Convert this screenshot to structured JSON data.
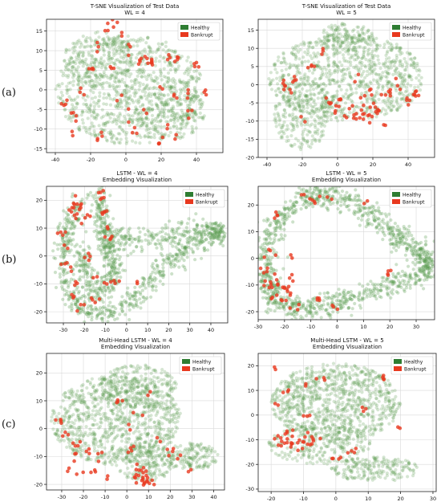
{
  "row_labels": [
    "(a)",
    "(b)",
    "(c)"
  ],
  "colors": {
    "healthy": "#2e7d32",
    "healthy_point": "#5a9a4e",
    "bankrupt": "#e8391f",
    "grid": "#d9d9d9"
  },
  "chart_data": [
    {
      "type": "scatter",
      "title": "T-SNE Visualization of Test Data\nWL = 4",
      "xlim": [
        -45,
        55
      ],
      "ylim": [
        -16,
        18
      ],
      "xticks": [
        -40,
        -20,
        0,
        20,
        40
      ],
      "yticks": [
        -15,
        -10,
        -5,
        0,
        5,
        10,
        15
      ],
      "grid": true,
      "legend_position": "upper-right",
      "legend": [
        "Healthy",
        "Bankrupt"
      ],
      "series": [
        {
          "name": "Healthy",
          "color": "#2e7d32",
          "opacity": 0.25,
          "regions": [
            {
              "cx": 2,
              "cy": 0,
              "rx": 42,
              "ry": 14,
              "n": 900
            },
            {
              "cx": -15,
              "cy": 8,
              "rx": 20,
              "ry": 7,
              "n": 200
            },
            {
              "cx": 25,
              "cy": -5,
              "rx": 20,
              "ry": 8,
              "n": 200
            }
          ]
        },
        {
          "name": "Bankrupt",
          "color": "#e8391f",
          "opacity": 0.8,
          "clusters": [
            [
              -10,
              16
            ],
            [
              -6,
              17
            ],
            [
              -3,
              14
            ],
            [
              -16,
              12
            ],
            [
              -35,
              -3
            ],
            [
              -30,
              -5
            ],
            [
              -25,
              -1
            ],
            [
              -28,
              -8
            ],
            [
              -20,
              5
            ],
            [
              8,
              7
            ],
            [
              10,
              7
            ],
            [
              14,
              6
            ],
            [
              15,
              7
            ],
            [
              25,
              8
            ],
            [
              30,
              8
            ],
            [
              40,
              7
            ],
            [
              20,
              0
            ],
            [
              10,
              -4
            ],
            [
              0,
              -6
            ],
            [
              -5,
              -2
            ],
            [
              28,
              -2
            ],
            [
              34,
              0
            ],
            [
              45,
              -1
            ],
            [
              5,
              -10
            ],
            [
              -30,
              -11
            ],
            [
              -15,
              -12
            ],
            [
              18,
              -13
            ],
            [
              23,
              -9
            ],
            [
              36,
              -5
            ],
            [
              -8,
              6
            ],
            [
              2,
              11
            ],
            [
              28,
              -12
            ]
          ]
        }
      ]
    },
    {
      "type": "scatter",
      "title": "T-SNE Visualization of Test Data\nWL = 5",
      "xlim": [
        -45,
        55
      ],
      "ylim": [
        -20,
        18
      ],
      "xticks": [
        -40,
        -20,
        0,
        20,
        40
      ],
      "yticks": [
        -20,
        -15,
        -10,
        -5,
        0,
        5,
        10,
        15
      ],
      "grid": true,
      "legend_position": "upper-right",
      "legend": [
        "Healthy",
        "Bankrupt"
      ],
      "series": [
        {
          "name": "Healthy",
          "color": "#2e7d32",
          "opacity": 0.25,
          "regions": [
            {
              "cx": 5,
              "cy": 2,
              "rx": 44,
              "ry": 12,
              "n": 900
            },
            {
              "cx": -20,
              "cy": -8,
              "rx": 16,
              "ry": 10,
              "n": 250
            },
            {
              "cx": 5,
              "cy": 13,
              "rx": 15,
              "ry": 4,
              "n": 120
            }
          ]
        },
        {
          "name": "Bankrupt",
          "color": "#e8391f",
          "opacity": 0.8,
          "clusters": [
            [
              -32,
              0
            ],
            [
              -28,
              -2
            ],
            [
              -24,
              2
            ],
            [
              -5,
              -5
            ],
            [
              0,
              -7
            ],
            [
              2,
              -4
            ],
            [
              5,
              -8
            ],
            [
              8,
              -6
            ],
            [
              10,
              -9
            ],
            [
              12,
              -7
            ],
            [
              14,
              -8
            ],
            [
              15,
              -5
            ],
            [
              18,
              -9
            ],
            [
              20,
              -6
            ],
            [
              22,
              -7
            ],
            [
              25,
              -4
            ],
            [
              30,
              -2
            ],
            [
              34,
              0
            ],
            [
              40,
              -5
            ],
            [
              44,
              -2
            ],
            [
              46,
              -3
            ],
            [
              -15,
              5
            ],
            [
              -8,
              9
            ],
            [
              -20,
              -10
            ],
            [
              10,
              1
            ],
            [
              28,
              -11
            ],
            [
              18,
              -3
            ]
          ]
        }
      ]
    },
    {
      "type": "scatter",
      "title": "LSTM - WL = 4\nEmbedding Visualization",
      "xlim": [
        -38,
        48
      ],
      "ylim": [
        -24,
        25
      ],
      "xticks": [
        -30,
        -20,
        -10,
        0,
        10,
        20,
        30,
        40
      ],
      "yticks": [
        -20,
        -10,
        0,
        10,
        20
      ],
      "grid": true,
      "legend_position": "upper-right",
      "legend": [
        "Healthy",
        "Bankrupt"
      ],
      "series": [
        {
          "name": "Healthy",
          "color": "#2e7d32",
          "opacity": 0.3,
          "path": [
            [
              -22,
              20
            ],
            [
              -28,
              10
            ],
            [
              -30,
              0
            ],
            [
              -28,
              -12
            ],
            [
              -20,
              -20
            ],
            [
              -10,
              -22
            ],
            [
              0,
              -18
            ],
            [
              10,
              -10
            ],
            [
              20,
              -2
            ],
            [
              30,
              4
            ],
            [
              42,
              8
            ],
            [
              44,
              9
            ],
            [
              30,
              9
            ],
            [
              15,
              7
            ],
            [
              0,
              5
            ],
            [
              -10,
              8
            ],
            [
              -13,
              22
            ],
            [
              -11,
              10
            ],
            [
              -8,
              0
            ],
            [
              -5,
              -8
            ],
            [
              -15,
              -14
            ],
            [
              -20,
              -5
            ],
            [
              -22,
              5
            ]
          ],
          "n": 1300,
          "spread": 2.2
        },
        {
          "name": "Bankrupt",
          "color": "#e8391f",
          "opacity": 0.8,
          "clusters": [
            [
              -24,
              17
            ],
            [
              -22,
              18
            ],
            [
              -26,
              15
            ],
            [
              -20,
              14
            ],
            [
              -23,
              13
            ],
            [
              -30,
              7
            ],
            [
              -28,
              3
            ],
            [
              -30,
              -2
            ],
            [
              -27,
              -5
            ],
            [
              -24,
              -10
            ],
            [
              -26,
              -14
            ],
            [
              -22,
              -18
            ],
            [
              -13,
              23
            ],
            [
              -12,
              20
            ],
            [
              -11,
              15
            ],
            [
              -10,
              10
            ],
            [
              -9,
              6
            ],
            [
              -14,
              -8
            ],
            [
              -10,
              -10
            ],
            [
              -5,
              -9
            ],
            [
              -15,
              -16
            ],
            [
              5,
              -10
            ],
            [
              -18,
              0
            ],
            [
              -12,
              16
            ],
            [
              -25,
              20
            ]
          ]
        }
      ]
    },
    {
      "type": "scatter",
      "title": "LSTM - WL = 5\nEmbedding Visualization",
      "xlim": [
        -30,
        37
      ],
      "ylim": [
        -23,
        27
      ],
      "xticks": [
        -30,
        -20,
        -10,
        0,
        10,
        20,
        30
      ],
      "yticks": [
        -20,
        -10,
        0,
        10,
        20
      ],
      "grid": true,
      "legend_position": "upper-right",
      "legend": [
        "Healthy",
        "Bankrupt"
      ],
      "series": [
        {
          "name": "Healthy",
          "color": "#2e7d32",
          "opacity": 0.3,
          "path": [
            [
              -26,
              -8
            ],
            [
              -27,
              5
            ],
            [
              -22,
              15
            ],
            [
              -12,
              23
            ],
            [
              -2,
              24
            ],
            [
              10,
              19
            ],
            [
              20,
              10
            ],
            [
              30,
              4
            ],
            [
              34,
              0
            ],
            [
              33,
              -6
            ],
            [
              20,
              -10
            ],
            [
              5,
              -15
            ],
            [
              -5,
              -18
            ],
            [
              -15,
              -19
            ],
            [
              -24,
              -15
            ],
            [
              -26,
              -8
            ]
          ],
          "n": 1200,
          "spread": 2.2
        },
        {
          "name": "Bankrupt",
          "color": "#e8391f",
          "opacity": 0.8,
          "clusters": [
            [
              -26,
              -9
            ],
            [
              -24,
              -11
            ],
            [
              -22,
              -10
            ],
            [
              -20,
              -12
            ],
            [
              -25,
              -14
            ],
            [
              -23,
              -7
            ],
            [
              -27,
              -4
            ],
            [
              -26,
              2
            ],
            [
              -21,
              -15
            ],
            [
              -18,
              -13
            ],
            [
              -16,
              -18
            ],
            [
              -8,
              -16
            ],
            [
              -2,
              -18
            ],
            [
              -12,
              23
            ],
            [
              -8,
              21
            ],
            [
              -3,
              23
            ],
            [
              10,
              22
            ],
            [
              -24,
              16
            ],
            [
              -18,
              -8
            ],
            [
              20,
              -5
            ],
            [
              -15,
              0
            ]
          ]
        }
      ]
    },
    {
      "type": "scatter",
      "title": "Multi-Head LSTM - WL = 4\nEmbedding Visualization",
      "xlim": [
        -37,
        45
      ],
      "ylim": [
        -22,
        27
      ],
      "xticks": [
        -30,
        -20,
        -10,
        0,
        10,
        20,
        30,
        40
      ],
      "yticks": [
        -20,
        -10,
        0,
        10,
        20
      ],
      "grid": true,
      "legend_position": "upper-right",
      "legend": [
        "Healthy",
        "Bankrupt"
      ],
      "series": [
        {
          "name": "Healthy",
          "color": "#2e7d32",
          "opacity": 0.25,
          "regions": [
            {
              "cx": -5,
              "cy": 3,
              "rx": 30,
              "ry": 16,
              "n": 900
            },
            {
              "cx": 5,
              "cy": 15,
              "rx": 18,
              "ry": 8,
              "n": 250
            },
            {
              "cx": 30,
              "cy": -10,
              "rx": 12,
              "ry": 5,
              "n": 150
            },
            {
              "cx": 8,
              "cy": -12,
              "rx": 14,
              "ry": 7,
              "n": 200
            }
          ]
        },
        {
          "name": "Bankrupt",
          "color": "#e8391f",
          "opacity": 0.8,
          "clusters": [
            [
              5,
              -17
            ],
            [
              7,
              -15
            ],
            [
              8,
              -18
            ],
            [
              10,
              -16
            ],
            [
              9,
              -20
            ],
            [
              6,
              -20
            ],
            [
              11,
              -19
            ],
            [
              4,
              -14
            ],
            [
              -30,
              3
            ],
            [
              -28,
              -2
            ],
            [
              -25,
              -10
            ],
            [
              -23,
              -5
            ],
            [
              -26,
              -15
            ],
            [
              -20,
              -17
            ],
            [
              -15,
              -15
            ],
            [
              -10,
              -18
            ],
            [
              -12,
              -10
            ],
            [
              -18,
              -8
            ],
            [
              0,
              1
            ],
            [
              5,
              5
            ],
            [
              10,
              13
            ],
            [
              15,
              -5
            ],
            [
              20,
              -8
            ],
            [
              25,
              -10
            ],
            [
              30,
              -15
            ],
            [
              -5,
              10
            ],
            [
              2,
              -8
            ]
          ]
        }
      ]
    },
    {
      "type": "scatter",
      "title": "Multi-Head LSTM - WL = 5\nEmbedding Visualization",
      "xlim": [
        -24,
        31
      ],
      "ylim": [
        -31,
        25
      ],
      "xticks": [
        -20,
        -10,
        0,
        10,
        20,
        30
      ],
      "yticks": [
        -30,
        -20,
        -10,
        0,
        10,
        20
      ],
      "grid": true,
      "legend_position": "upper-right",
      "legend": [
        "Healthy",
        "Bankrupt"
      ],
      "series": [
        {
          "name": "Healthy",
          "color": "#2e7d32",
          "opacity": 0.25,
          "regions": [
            {
              "cx": 0,
              "cy": 5,
              "rx": 20,
              "ry": 16,
              "n": 900
            },
            {
              "cx": -5,
              "cy": -12,
              "rx": 16,
              "ry": 8,
              "n": 250
            },
            {
              "cx": 12,
              "cy": -22,
              "rx": 14,
              "ry": 5,
              "n": 200
            }
          ]
        },
        {
          "name": "Bankrupt",
          "color": "#e8391f",
          "opacity": 0.8,
          "clusters": [
            [
              -17,
              -8
            ],
            [
              -15,
              -9
            ],
            [
              -13,
              -10
            ],
            [
              -12,
              -11
            ],
            [
              -14,
              -12
            ],
            [
              -16,
              -11
            ],
            [
              -10,
              -9
            ],
            [
              -11,
              -14
            ],
            [
              -18,
              -12
            ],
            [
              -9,
              -12
            ],
            [
              -7,
              -10
            ],
            [
              -13,
              -7
            ],
            [
              -19,
              5
            ],
            [
              -15,
              10
            ],
            [
              -10,
              13
            ],
            [
              -5,
              15
            ],
            [
              -8,
              0
            ],
            [
              0,
              -18
            ],
            [
              5,
              -15
            ],
            [
              -20,
              20
            ],
            [
              15,
              15
            ],
            [
              8,
              2
            ],
            [
              20,
              -5
            ]
          ]
        }
      ]
    }
  ]
}
